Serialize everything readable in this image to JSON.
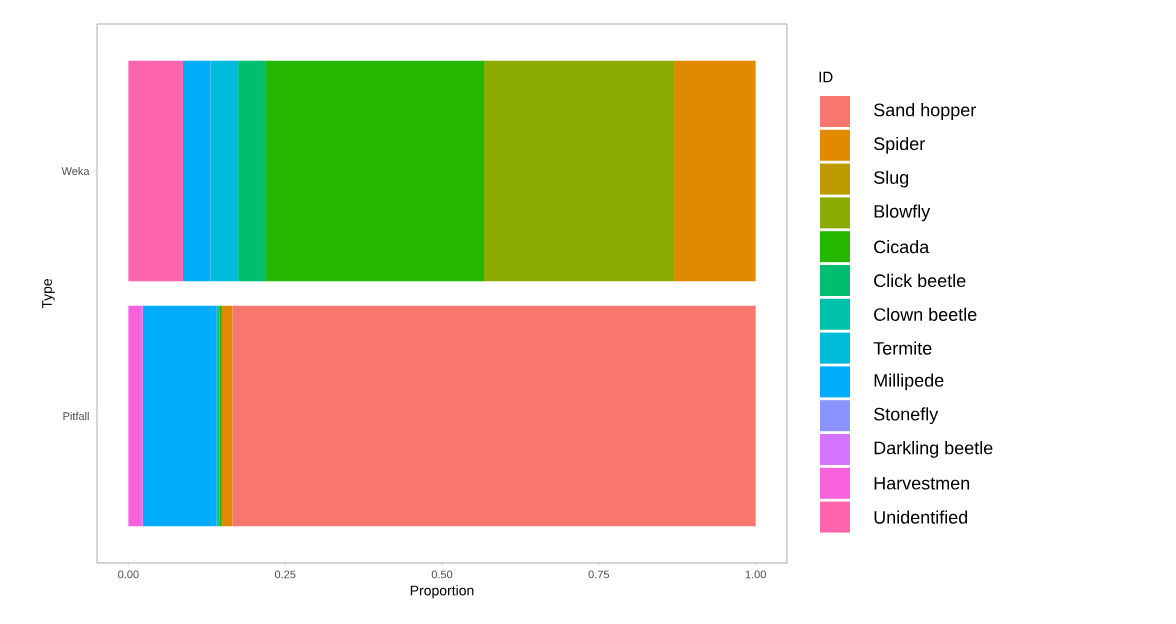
{
  "chart_data": {
    "type": "bar",
    "orientation": "horizontal",
    "stacked": true,
    "xlabel": "Proportion",
    "ylabel": "Type",
    "legend_title": "ID",
    "legend": "right",
    "grid": false,
    "categories": [
      "Weka",
      "Pitfall"
    ],
    "xlim": [
      -0.05,
      1.05
    ],
    "xticks": [
      {
        "value": 0,
        "label": "0.00"
      },
      {
        "value": 0.25,
        "label": "0.25"
      },
      {
        "value": 0.5,
        "label": "0.50"
      },
      {
        "value": 0.75,
        "label": "0.75"
      },
      {
        "value": 1,
        "label": "1.00"
      }
    ],
    "series": [
      {
        "name": "Unidentified",
        "color": "#ff65ac",
        "values": [
          0.087,
          0
        ]
      },
      {
        "name": "Harvestmen",
        "color": "#f962dd",
        "values": [
          0,
          0.02
        ]
      },
      {
        "name": "Darkling beetle",
        "color": "#d575fe",
        "values": [
          0,
          0.003
        ]
      },
      {
        "name": "Stonefly",
        "color": "#8b93ff",
        "values": [
          0,
          0
        ]
      },
      {
        "name": "Millipede",
        "color": "#00acfc",
        "values": [
          0.044,
          0.117
        ]
      },
      {
        "name": "Termite",
        "color": "#00bbda",
        "values": [
          0.044,
          0.003
        ]
      },
      {
        "name": "Clown beetle",
        "color": "#00c1ab",
        "values": [
          0,
          0
        ]
      },
      {
        "name": "Click beetle",
        "color": "#00be70",
        "values": [
          0.043,
          0.002
        ]
      },
      {
        "name": "Cicada",
        "color": "#24b700",
        "values": [
          0.349,
          0.004
        ]
      },
      {
        "name": "Blowfly",
        "color": "#8cab00",
        "values": [
          0.303,
          0
        ]
      },
      {
        "name": "Slug",
        "color": "#be9c00",
        "values": [
          0,
          0
        ]
      },
      {
        "name": "Spider",
        "color": "#e18a00",
        "values": [
          0.13,
          0.017
        ]
      },
      {
        "name": "Sand hopper",
        "color": "#f8766d",
        "values": [
          0,
          0.834
        ]
      }
    ]
  }
}
